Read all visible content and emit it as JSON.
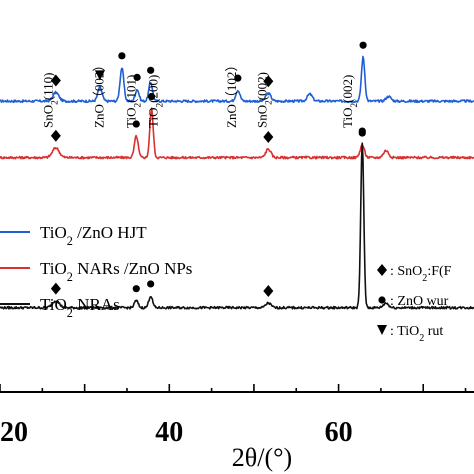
{
  "chart_data": {
    "type": "line",
    "title": "",
    "xlabel": "2θ/(°)",
    "ylabel": "",
    "xlim": [
      20,
      76
    ],
    "x_ticks": [
      {
        "value": 20,
        "label": "20"
      },
      {
        "value": 40,
        "label": "40"
      },
      {
        "value": 60,
        "label": "60"
      }
    ],
    "series": [
      {
        "name": "TiO2 /ZnO HJT",
        "name_parts": {
          "base": "TiO",
          "sub": "2",
          "rest": " /ZnO HJT"
        },
        "color": "#1f5fd6",
        "baseline": 0.742,
        "noise": 0.006,
        "peaks": [
          {
            "x": 26.6,
            "h": 0.022,
            "w": 0.35
          },
          {
            "x": 31.8,
            "h": 0.035,
            "w": 0.25
          },
          {
            "x": 34.4,
            "h": 0.085,
            "w": 0.22
          },
          {
            "x": 36.2,
            "h": 0.03,
            "w": 0.22
          },
          {
            "x": 37.8,
            "h": 0.048,
            "w": 0.22
          },
          {
            "x": 48.1,
            "h": 0.028,
            "w": 0.25
          },
          {
            "x": 51.7,
            "h": 0.02,
            "w": 0.3
          },
          {
            "x": 56.6,
            "h": 0.018,
            "w": 0.3
          },
          {
            "x": 62.9,
            "h": 0.112,
            "w": 0.2
          },
          {
            "x": 65.9,
            "h": 0.012,
            "w": 0.3
          }
        ]
      },
      {
        "name": "TiO2 NARs /ZnO NPs",
        "name_parts": {
          "base": "TiO",
          "sub": "2",
          "rest": " NARs /ZnO NPs"
        },
        "color": "#d93030",
        "baseline": 0.598,
        "noise": 0.006,
        "peaks": [
          {
            "x": 26.6,
            "h": 0.025,
            "w": 0.4
          },
          {
            "x": 36.1,
            "h": 0.055,
            "w": 0.22
          },
          {
            "x": 37.9,
            "h": 0.125,
            "w": 0.2
          },
          {
            "x": 51.7,
            "h": 0.022,
            "w": 0.3
          },
          {
            "x": 62.8,
            "h": 0.032,
            "w": 0.25
          },
          {
            "x": 65.6,
            "h": 0.018,
            "w": 0.3
          }
        ]
      },
      {
        "name": "TiO2 NRAs",
        "name_parts": {
          "base": "TiO",
          "sub": "2",
          "rest": " NRAs"
        },
        "color": "#111111",
        "baseline": 0.215,
        "noise": 0.006,
        "peaks": [
          {
            "x": 26.6,
            "h": 0.018,
            "w": 0.4
          },
          {
            "x": 36.1,
            "h": 0.018,
            "w": 0.22
          },
          {
            "x": 37.8,
            "h": 0.03,
            "w": 0.22
          },
          {
            "x": 51.7,
            "h": 0.012,
            "w": 0.3
          },
          {
            "x": 62.8,
            "h": 0.42,
            "w": 0.18
          },
          {
            "x": 65.6,
            "h": 0.012,
            "w": 0.3
          }
        ]
      }
    ],
    "markers": [
      {
        "series": 0,
        "x": 26.6,
        "shape": "diamond"
      },
      {
        "series": 0,
        "x": 31.8,
        "shape": "triangle-down"
      },
      {
        "series": 0,
        "x": 34.4,
        "shape": "circle"
      },
      {
        "series": 0,
        "x": 36.2,
        "shape": "circle"
      },
      {
        "series": 0,
        "x": 37.8,
        "shape": "circle"
      },
      {
        "series": 0,
        "x": 48.1,
        "shape": "circle"
      },
      {
        "series": 0,
        "x": 51.7,
        "shape": "diamond"
      },
      {
        "series": 0,
        "x": 62.9,
        "shape": "circle"
      },
      {
        "series": 1,
        "x": 26.6,
        "shape": "diamond"
      },
      {
        "series": 1,
        "x": 36.1,
        "shape": "circle"
      },
      {
        "series": 1,
        "x": 37.9,
        "shape": "circle"
      },
      {
        "series": 1,
        "x": 51.7,
        "shape": "diamond"
      },
      {
        "series": 1,
        "x": 62.8,
        "shape": "circle"
      },
      {
        "series": 2,
        "x": 26.6,
        "shape": "diamond"
      },
      {
        "series": 2,
        "x": 36.1,
        "shape": "circle"
      },
      {
        "series": 2,
        "x": 37.8,
        "shape": "circle"
      },
      {
        "series": 2,
        "x": 51.7,
        "shape": "diamond"
      },
      {
        "series": 2,
        "x": 62.8,
        "shape": "circle"
      }
    ],
    "peak_labels": [
      {
        "x": 26.2,
        "base": "SnO",
        "sub": "2",
        "rest": "(110)"
      },
      {
        "x": 32.2,
        "base": "ZnO（002）",
        "sub": "",
        "rest": ""
      },
      {
        "x": 36.0,
        "base": "TiO",
        "sub": "2",
        "rest": "(101)"
      },
      {
        "x": 38.6,
        "base": "TiO",
        "sub": "2",
        "rest": "(200)"
      },
      {
        "x": 47.9,
        "base": "ZnO（102）",
        "sub": "",
        "rest": ""
      },
      {
        "x": 51.5,
        "base": "SnO",
        "sub": "2",
        "rest": "(002)"
      },
      {
        "x": 61.6,
        "base": "TiO",
        "sub": "2",
        "rest": "(002)"
      }
    ],
    "marker_legend": [
      {
        "shape": "diamond",
        "base": ": SnO",
        "sub": "2",
        "rest": ":F(F"
      },
      {
        "shape": "circle",
        "base": ":  ZnO wur",
        "sub": "",
        "rest": ""
      },
      {
        "shape": "triangle-down",
        "base": ":  TiO",
        "sub": "2",
        "rest": " rut"
      }
    ],
    "legend_position": "middle-left",
    "grid": false
  }
}
